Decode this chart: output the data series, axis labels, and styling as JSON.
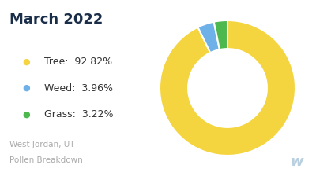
{
  "title": "March 2022",
  "subtitle1": "West Jordan, UT",
  "subtitle2": "Pollen Breakdown",
  "categories": [
    "Tree",
    "Weed",
    "Grass"
  ],
  "values": [
    92.82,
    3.96,
    3.22
  ],
  "percentages": [
    "92.82%",
    "3.96%",
    "3.22%"
  ],
  "colors": [
    "#F5D53F",
    "#6EB0E8",
    "#4DB84D"
  ],
  "background_color": "#ffffff",
  "title_color": "#1a2e4a",
  "legend_label_color": "#333333",
  "subtitle_color": "#aaaaaa",
  "watermark_color": "#b8cfe0",
  "title_fontsize": 13,
  "legend_fontsize": 9,
  "subtitle_fontsize": 7.5,
  "watermark_fontsize": 13
}
